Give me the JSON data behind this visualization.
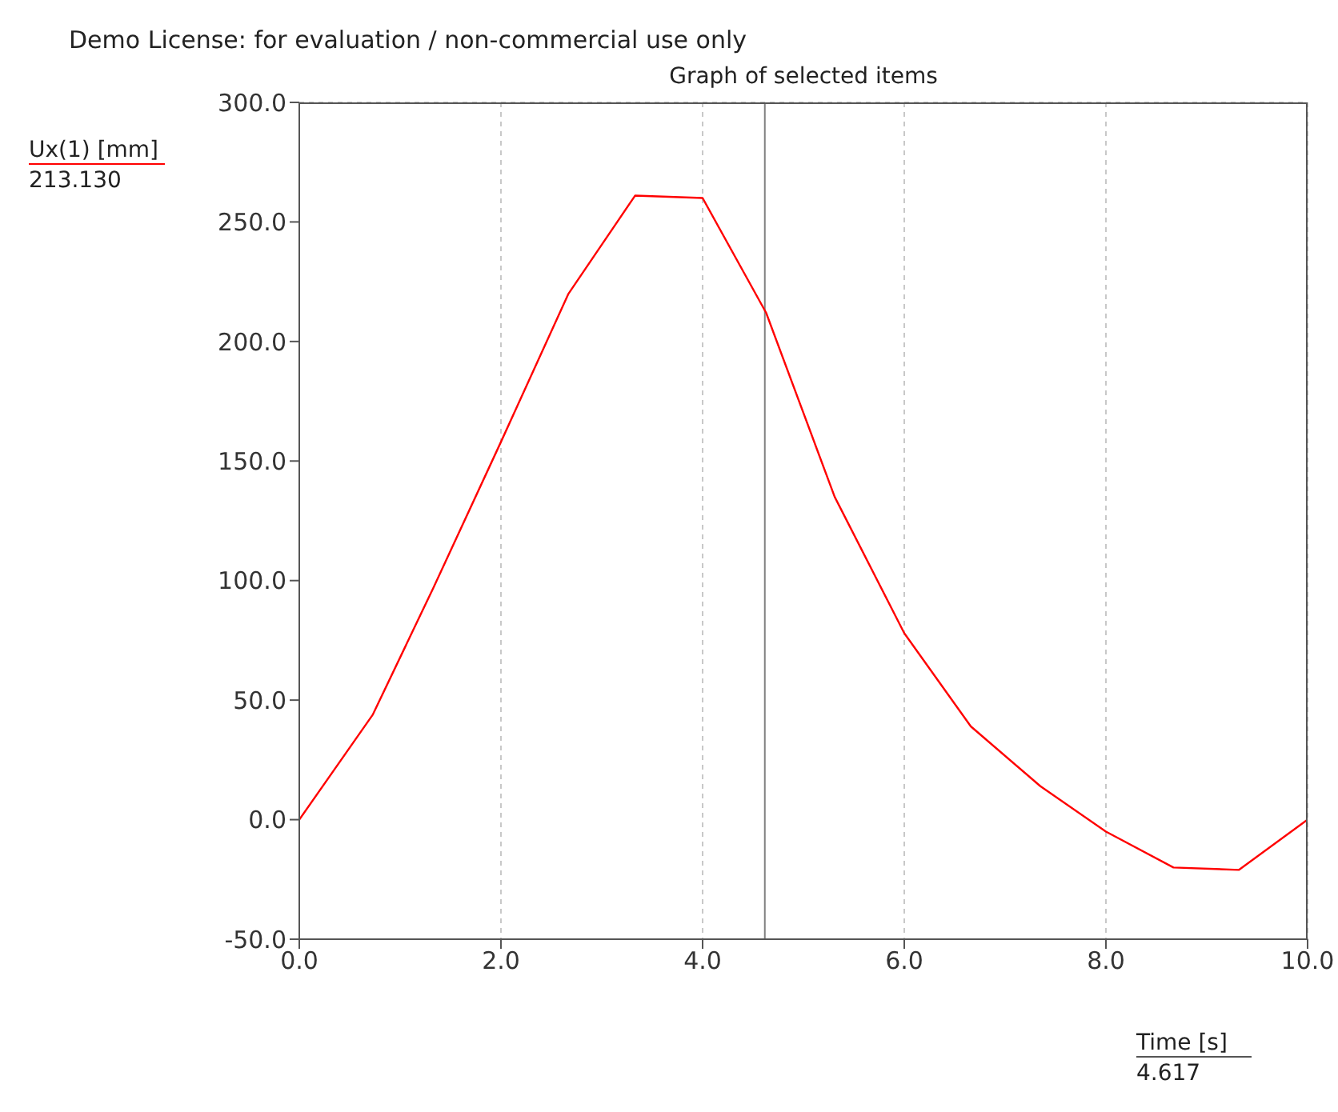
{
  "chart_data": {
    "type": "line",
    "title": "Graph of selected items",
    "xlabel": "Time [s]",
    "ylabel": "Ux(1) [mm]",
    "annotations": [
      "Demo License: for evaluation / non-commercial use only",
      "213.130",
      "4.617"
    ],
    "x": [
      0,
      0.73,
      1.33,
      2.0,
      2.67,
      3.33,
      4.0,
      4.63,
      5.31,
      6.0,
      6.66,
      7.35,
      8.0,
      8.67,
      9.32,
      10.0
    ],
    "series": [
      {
        "color": "#ff0000",
        "values": [
          0,
          44,
          97,
          158,
          220,
          261,
          260,
          212,
          135,
          78,
          39,
          14,
          -5,
          -20,
          -21,
          0
        ]
      }
    ],
    "xlim": [
      0,
      10
    ],
    "xticks": [
      {
        "value": 0,
        "label": "0.0"
      },
      {
        "value": 2,
        "label": "2.0"
      },
      {
        "value": 4,
        "label": "4.0"
      },
      {
        "value": 6,
        "label": "6.0"
      },
      {
        "value": 8,
        "label": "8.0"
      },
      {
        "value": 10,
        "label": "10.0"
      }
    ],
    "ylim": [
      -50,
      300
    ],
    "yticks": [
      {
        "value": -50,
        "label": "-50.0"
      },
      {
        "value": 0,
        "label": "0.0"
      },
      {
        "value": 50,
        "label": "50.0"
      },
      {
        "value": 100,
        "label": "100.0"
      },
      {
        "value": 150,
        "label": "150.0"
      },
      {
        "value": 200,
        "label": "200.0"
      },
      {
        "value": 250,
        "label": "250.0"
      },
      {
        "value": 300,
        "label": "300.0"
      }
    ],
    "ref_lines": [
      {
        "axis": "x",
        "value": 4.617,
        "color": "#808080"
      }
    ],
    "grid": true,
    "marker": "none",
    "line_style": "solid"
  }
}
